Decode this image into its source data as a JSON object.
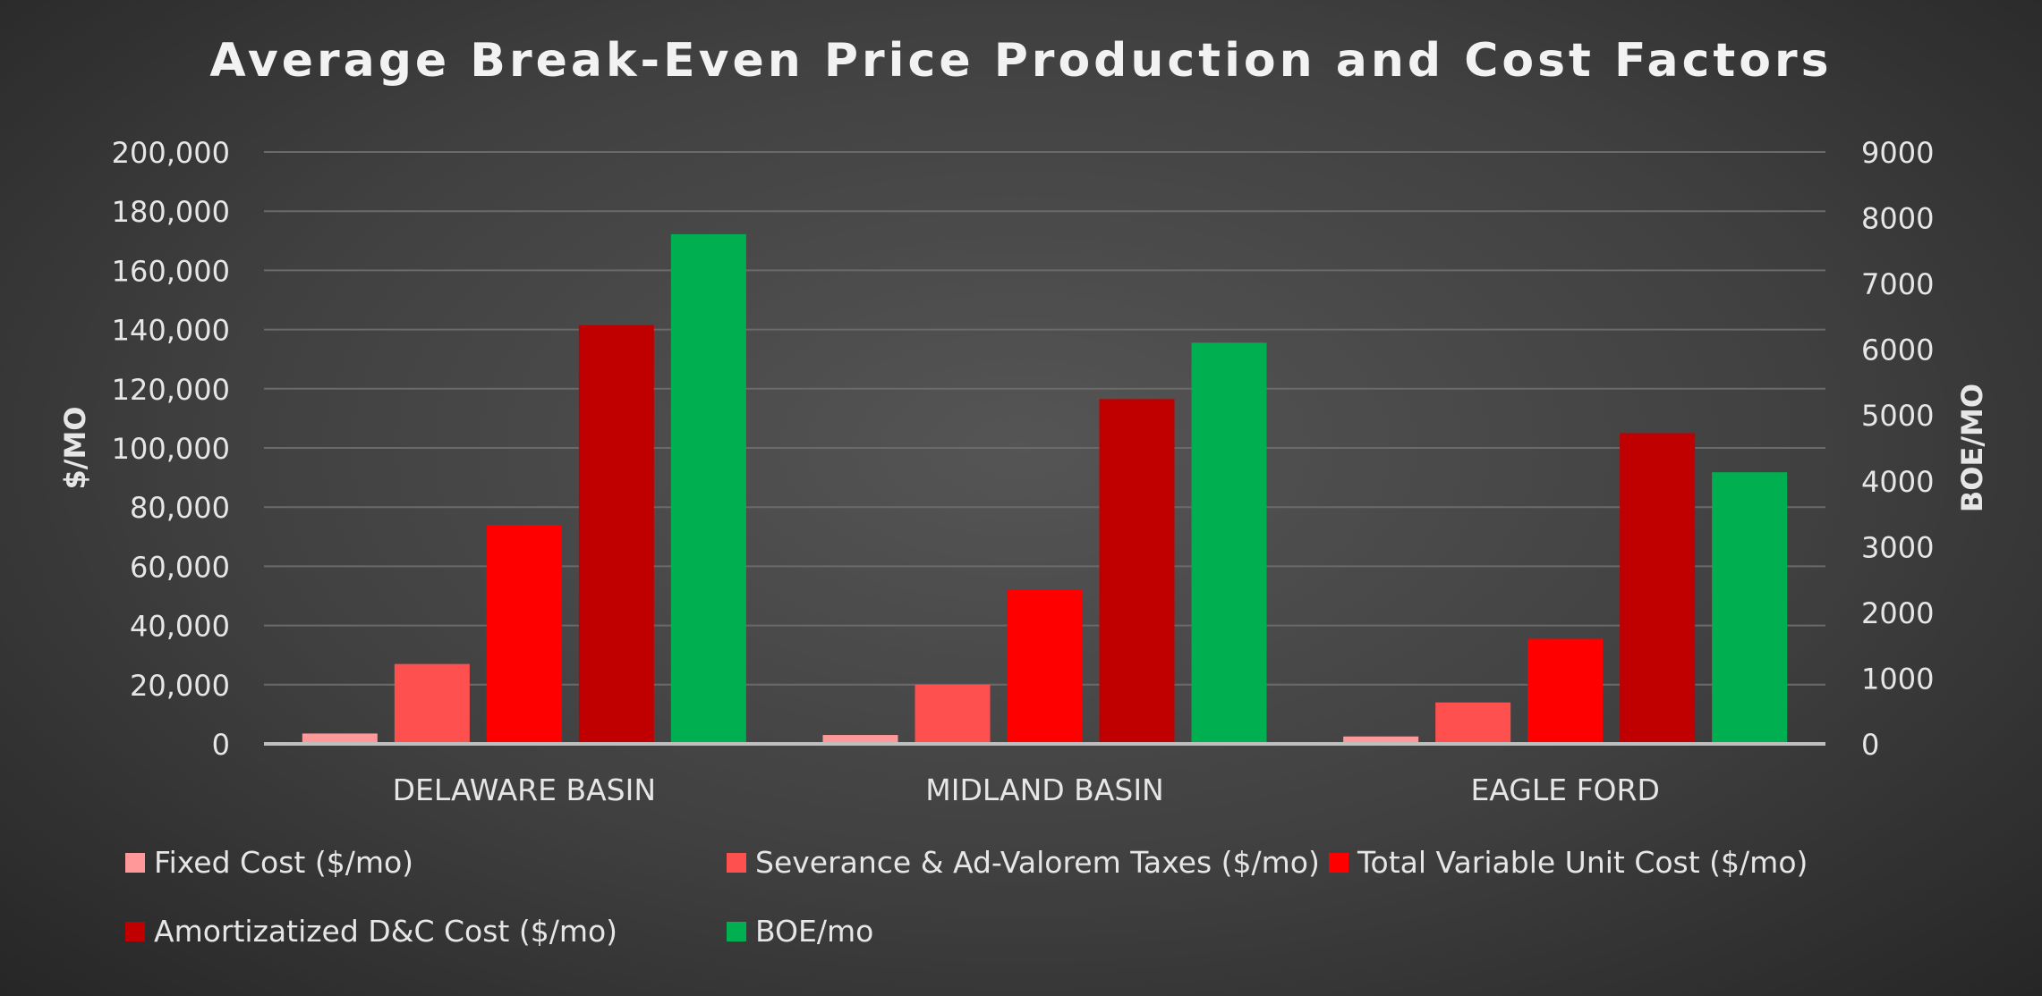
{
  "chart_data": {
    "type": "bar",
    "title": "Average Break-Even Price Production and Cost Factors",
    "categories": [
      "DELAWARE BASIN",
      "MIDLAND BASIN",
      "EAGLE FORD"
    ],
    "ylabel_left": "$/MO",
    "ylabel_right": "BOE/MO",
    "ylim_left": [
      0,
      200000
    ],
    "ylim_right": [
      0,
      9000
    ],
    "left_ticks": [
      "0",
      "20,000",
      "40,000",
      "60,000",
      "80,000",
      "100,000",
      "120,000",
      "140,000",
      "160,000",
      "180,000",
      "200,000"
    ],
    "right_ticks": [
      "0",
      "1000",
      "2000",
      "3000",
      "4000",
      "5000",
      "6000",
      "7000",
      "8000",
      "9000"
    ],
    "grid": true,
    "legend_position": "bottom",
    "series": [
      {
        "name": "Fixed Cost ($/mo)",
        "axis": "left",
        "color": "#ff9999",
        "values": [
          3500,
          3000,
          2500
        ]
      },
      {
        "name": "Severance & Ad-Valorem Taxes ($/mo)",
        "axis": "left",
        "color": "#ff5050",
        "values": [
          27000,
          20000,
          14000
        ]
      },
      {
        "name": "Total Variable Unit Cost ($/mo)",
        "axis": "left",
        "color": "#ff0000",
        "values": [
          74000,
          52000,
          35500
        ]
      },
      {
        "name": "Amortizatized D&C Cost ($/mo)",
        "axis": "left",
        "color": "#c00000",
        "values": [
          141500,
          116500,
          105000
        ]
      },
      {
        "name": "BOE/mo",
        "axis": "right",
        "color": "#00b050",
        "values": [
          7750,
          6100,
          4130
        ]
      }
    ]
  }
}
